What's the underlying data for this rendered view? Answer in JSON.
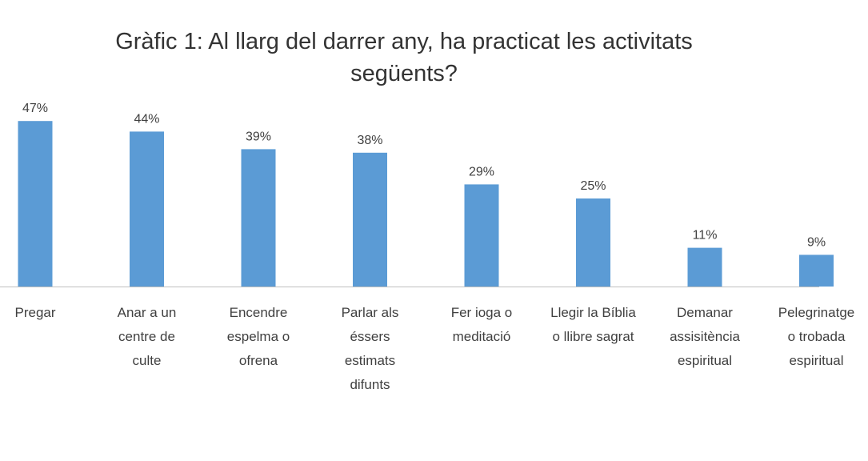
{
  "chart_data": {
    "type": "bar",
    "title_lines": [
      "Gràfic 1: Al llarg del darrer any, ha practicat les activitats",
      "següents?"
    ],
    "categories": [
      [
        "Pregar"
      ],
      [
        "Anar a un",
        "centre de",
        "culte"
      ],
      [
        "Encendre",
        "espelma o",
        "ofrena"
      ],
      [
        "Parlar als",
        "éssers",
        "estimats",
        "difunts"
      ],
      [
        "Fer ioga o",
        "meditació"
      ],
      [
        "Llegir la Bíblia",
        "o llibre sagrat"
      ],
      [
        "Demanar",
        "assisitència",
        "espiritual"
      ],
      [
        "Pelegrinatge",
        "o trobada",
        "espiritual"
      ]
    ],
    "values": [
      47,
      44,
      39,
      38,
      29,
      25,
      11,
      9
    ],
    "data_labels": [
      "47%",
      "44%",
      "39%",
      "38%",
      "29%",
      "25%",
      "11%",
      "9%"
    ],
    "unit": "%",
    "ylim": [
      0,
      50
    ],
    "grid": false,
    "legend": "none",
    "bar_color": "#5b9bd5",
    "axis_color": "#bfbfbf"
  }
}
